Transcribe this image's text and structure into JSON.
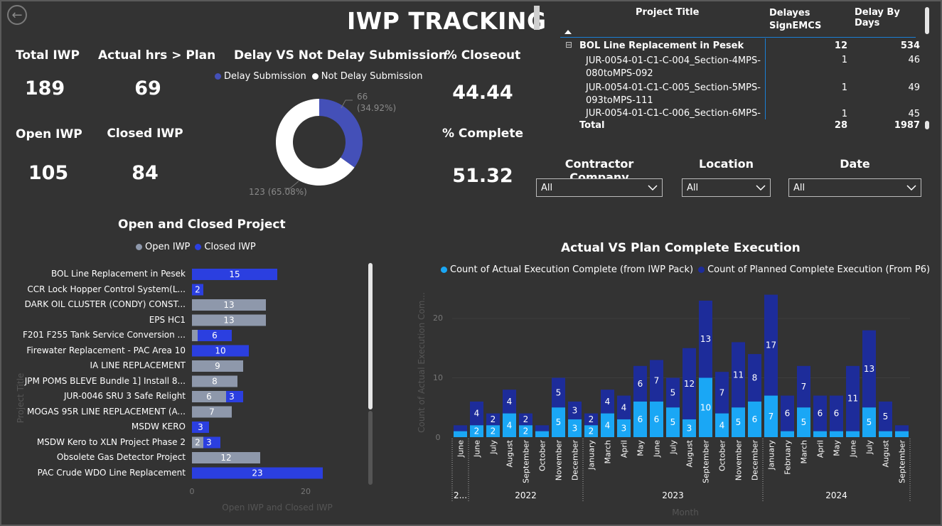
{
  "header": {
    "title": "IWP TRACKING"
  },
  "kpis": {
    "total_iwp": {
      "label": "Total IWP",
      "value": "189"
    },
    "actual_gt_plan": {
      "label": "Actual hrs > Plan",
      "value": "69"
    },
    "open_iwp": {
      "label": "Open IWP",
      "value": "105"
    },
    "closed_iwp": {
      "label": "Closed IWP",
      "value": "84"
    },
    "closeout": {
      "label": "% Closeout",
      "value": "44.44"
    },
    "complete": {
      "label": "% Complete",
      "value": "51.32"
    }
  },
  "donut": {
    "title": "Delay VS Not Delay Submission",
    "legend": [
      "Delay Submission",
      "Not Delay Submission"
    ],
    "colors": [
      "#4450b8",
      "#ffffff"
    ],
    "delay_label_1": "66",
    "delay_label_2": "(34.92%)",
    "notdelay_label": "123 (65.08%)",
    "values": [
      66,
      123
    ]
  },
  "table": {
    "headers": [
      "Project Title",
      "Delayes SignEMCS",
      "Delay By Days"
    ],
    "group": {
      "title": "BOL Line Replacement in Pesek",
      "delayes": "12",
      "days": "534"
    },
    "rows": [
      {
        "line1": "JUR-0054-01-C1-C-004_Section-4MPS-",
        "line2": "080toMPS-092",
        "delayes": "1",
        "days": "46"
      },
      {
        "line1": "JUR-0054-01-C1-C-005_Section-5MPS-",
        "line2": "093toMPS-111",
        "delayes": "1",
        "days": "49"
      },
      {
        "line1": "JUR-0054-01-C1-C-006_Section-6MPS-",
        "line2": "",
        "delayes": "1",
        "days": "45"
      }
    ],
    "total": {
      "label": "Total",
      "delayes": "28",
      "days": "1987"
    }
  },
  "slicers": {
    "contractor": {
      "label": "Contractor Company",
      "value": "All"
    },
    "location": {
      "label": "Location",
      "value": "All"
    },
    "date": {
      "label": "Date",
      "value": "All"
    }
  },
  "chart_data": [
    {
      "type": "bar",
      "title": "Open and Closed Project",
      "orientation": "horizontal",
      "legend": [
        "Open IWP",
        "Closed IWP"
      ],
      "colors": {
        "open": "#8e98ab",
        "closed": "#2b3fe0"
      },
      "ylabel": "Project Title",
      "xlabel": "Open IWP and Closed IWP",
      "xticks": [
        "0",
        "20"
      ],
      "xlim": [
        0,
        23
      ],
      "categories": [
        "BOL Line Replacement in Pesek",
        "CCR Lock Hopper Control System(L...",
        "DARK OIL CLUSTER (CONDY) CONST...",
        "EPS HC1",
        "F201 F255 Tank Service Conversion ...",
        "Firewater Replacement - PAC Area 10",
        "IA LINE REPLACEMENT",
        "JPM POMS BLEVE Bundle 1] Install 8...",
        "JUR-0046 SRU 3 Safe Relight",
        "MOGAS 95R LINE REPLACEMENT (A...",
        "MSDW KERO",
        "MSDW Kero to XLN Project Phase 2",
        "Obsolete Gas Detector Project",
        "PAC Crude WDO Line Replacement"
      ],
      "series": [
        {
          "name": "Open IWP",
          "values": [
            0,
            0,
            13,
            13,
            1,
            0,
            9,
            8,
            6,
            7,
            0,
            2,
            12,
            0
          ]
        },
        {
          "name": "Closed IWP",
          "values": [
            15,
            2,
            0,
            0,
            6,
            10,
            0,
            0,
            3,
            0,
            3,
            3,
            0,
            23
          ]
        }
      ],
      "labels": {
        "open": [
          "",
          "",
          "13",
          "13",
          "",
          "",
          "9",
          "8",
          "6",
          "7",
          "",
          "2",
          "12",
          ""
        ],
        "closed": [
          "15",
          "2",
          "",
          "",
          "6",
          "10",
          "",
          "",
          "3",
          "",
          "3",
          "3",
          "",
          "23"
        ]
      }
    },
    {
      "type": "bar",
      "stacked": true,
      "title": "Actual VS Plan Complete Execution",
      "legend": [
        "Count of Actual Execution Complete (from IWP Pack)",
        "Count of Planned Complete Execution (From P6)"
      ],
      "colors": {
        "actual": "#1aa7f5",
        "planned": "#1d2c9a"
      },
      "ylabel": "Count of Actual Execution Com...",
      "xlabel": "Month",
      "yticks": [
        "0",
        "10",
        "20"
      ],
      "ylim": [
        0,
        25
      ],
      "categories": [
        "June",
        "June",
        "July",
        "August",
        "September",
        "October",
        "November",
        "December",
        "January",
        "March",
        "April",
        "May",
        "June",
        "July",
        "August",
        "September",
        "October",
        "November",
        "December",
        "January",
        "February",
        "March",
        "April",
        "May",
        "June",
        "July",
        "August",
        "September"
      ],
      "years": [
        {
          "label": "2...",
          "count": 1
        },
        {
          "label": "2022",
          "count": 7
        },
        {
          "label": "2023",
          "count": 11
        },
        {
          "label": "2024",
          "count": 9
        }
      ],
      "series": [
        {
          "name": "Count of Actual Execution Complete (from IWP Pack)",
          "values": [
            1,
            2,
            2,
            4,
            2,
            1,
            5,
            3,
            2,
            4,
            3,
            6,
            6,
            5,
            3,
            10,
            4,
            5,
            6,
            7,
            1,
            5,
            1,
            1,
            1,
            5,
            1,
            1
          ]
        },
        {
          "name": "Count of Planned Complete Execution (From P6)",
          "values": [
            1,
            4,
            2,
            4,
            2,
            1,
            5,
            3,
            2,
            4,
            4,
            6,
            7,
            5,
            12,
            13,
            7,
            11,
            8,
            17,
            6,
            7,
            6,
            6,
            11,
            13,
            5,
            1
          ]
        }
      ],
      "labels": {
        "actual": [
          "",
          "2",
          "2",
          "4",
          "2",
          "",
          "5",
          "3",
          "2",
          "4",
          "3",
          "6",
          "6",
          "5",
          "3",
          "10",
          "4",
          "5",
          "6",
          "7",
          "",
          "5",
          "",
          "",
          "",
          "5",
          "",
          ""
        ],
        "planned": [
          "",
          "4",
          "2",
          "4",
          "2",
          "",
          "5",
          "3",
          "2",
          "4",
          "4",
          "6",
          "7",
          "5",
          "12",
          "13",
          "7",
          "11",
          "8",
          "17",
          "6",
          "7",
          "6",
          "6",
          "11",
          "13",
          "5",
          ""
        ]
      }
    }
  ]
}
